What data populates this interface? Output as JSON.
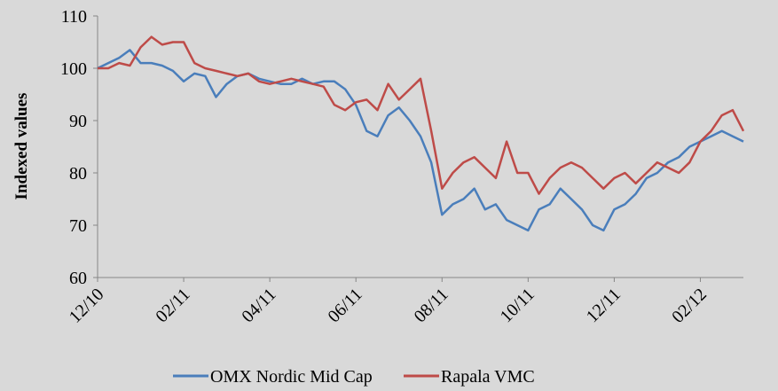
{
  "chart_data": {
    "type": "line",
    "ylabel": "Indexed values",
    "xlim": [
      0,
      15
    ],
    "xticks": [
      {
        "value": 0,
        "label": "12/10"
      },
      {
        "value": 2,
        "label": "02/11"
      },
      {
        "value": 4,
        "label": "04/11"
      },
      {
        "value": 6,
        "label": "06/11"
      },
      {
        "value": 8,
        "label": "08/11"
      },
      {
        "value": 10,
        "label": "10/11"
      },
      {
        "value": 12,
        "label": "12/11"
      },
      {
        "value": 14,
        "label": "02/12"
      }
    ],
    "ylim": [
      60,
      110
    ],
    "yticks": [
      60,
      70,
      80,
      90,
      100,
      110
    ],
    "grid": false,
    "legend": "bottom",
    "x": [
      0,
      0.25,
      0.5,
      0.75,
      1,
      1.25,
      1.5,
      1.75,
      2,
      2.25,
      2.5,
      2.75,
      3,
      3.25,
      3.5,
      3.75,
      4,
      4.25,
      4.5,
      4.75,
      5,
      5.25,
      5.5,
      5.75,
      6,
      6.25,
      6.5,
      6.75,
      7,
      7.25,
      7.5,
      7.75,
      8,
      8.25,
      8.5,
      8.75,
      9,
      9.25,
      9.5,
      9.75,
      10,
      10.25,
      10.5,
      10.75,
      11,
      11.25,
      11.5,
      11.75,
      12,
      12.25,
      12.5,
      12.75,
      13,
      13.25,
      13.5,
      13.75,
      14,
      14.25,
      14.5,
      14.75,
      15
    ],
    "series": [
      {
        "name": "OMX Nordic Mid Cap",
        "color": "#4a7ebb",
        "values": [
          100,
          101,
          102,
          103.5,
          101,
          101,
          100.5,
          99.5,
          97.5,
          99,
          98.5,
          94.5,
          97,
          98.5,
          99,
          98,
          97.5,
          97,
          97,
          98,
          97,
          97.5,
          97.5,
          96,
          93,
          88,
          87,
          91,
          92.5,
          90,
          87,
          82,
          72,
          74,
          75,
          77,
          73,
          74,
          71,
          70,
          69,
          73,
          74,
          77,
          75,
          73,
          70,
          69,
          73,
          74,
          76,
          79,
          80,
          82,
          83,
          85,
          86,
          87,
          88,
          87,
          86
        ]
      },
      {
        "name": "Rapala VMC",
        "color": "#be4b48",
        "values": [
          100,
          100,
          101,
          100.5,
          104,
          106,
          104.5,
          105,
          105,
          101,
          100,
          99.5,
          99,
          98.5,
          99,
          97.5,
          97,
          97.5,
          98,
          97.5,
          97,
          96.5,
          93,
          92,
          93.5,
          94,
          92,
          97,
          94,
          96,
          98,
          88,
          77,
          80,
          82,
          83,
          81,
          79,
          86,
          80,
          80,
          76,
          79,
          81,
          82,
          81,
          79,
          77,
          79,
          80,
          78,
          80,
          82,
          81,
          80,
          82,
          86,
          88,
          91,
          92,
          88
        ]
      }
    ]
  }
}
